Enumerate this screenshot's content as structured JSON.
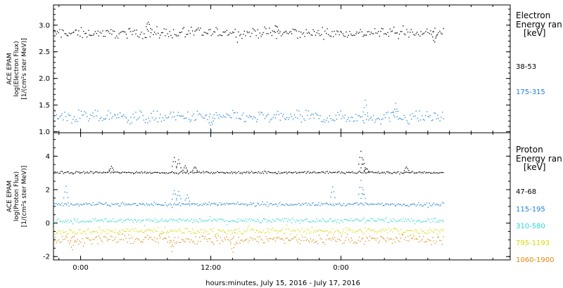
{
  "chart_data": [
    {
      "type": "scatter",
      "panel": "electron",
      "ylabel_lines": [
        "ACE EPAM",
        "log(Electron Flux)",
        "[1/(cm²s ster MeV)]"
      ],
      "yticks": [
        "1.0",
        "1.5",
        "2.0",
        "2.5",
        "3.0"
      ],
      "ylim": [
        0.98,
        3.38
      ],
      "legend_title": [
        "Electron",
        "Energy ran",
        "[keV]"
      ],
      "series": [
        {
          "name": "38-53",
          "color": "#000000",
          "mean": 2.86,
          "spread": 0.07,
          "spikes": [
            [
              6.2,
              3.1
            ],
            [
              18.0,
              3.02
            ],
            [
              32.6,
              2.7
            ]
          ]
        },
        {
          "name": "175-315",
          "color": "#1f7fd4",
          "mean": 1.28,
          "spread": 0.09,
          "spikes": [
            [
              26.2,
              1.58
            ],
            [
              29.0,
              1.52
            ],
            [
              12.0,
              1.06
            ]
          ]
        }
      ]
    },
    {
      "type": "scatter",
      "panel": "proton",
      "ylabel_lines": [
        "ACE EPAM",
        "log(Proton Flux)",
        "[1/(cm²s ster MeV)]"
      ],
      "yticks": [
        "-2",
        "0",
        "2",
        "4"
      ],
      "ylim": [
        -2.2,
        5.4
      ],
      "legend_title": [
        "Proton",
        "Energy ran",
        "[keV]"
      ],
      "series": [
        {
          "name": "47-68",
          "color": "#000000",
          "mean": 3.05,
          "spread": 0.05,
          "spikes": [
            [
              8.6,
              3.95
            ],
            [
              9.0,
              3.8
            ],
            [
              9.6,
              3.45
            ],
            [
              25.8,
              4.3
            ],
            [
              26.0,
              3.8
            ],
            [
              26.3,
              3.3
            ],
            [
              2.8,
              3.4
            ],
            [
              10.5,
              3.4
            ],
            [
              30.0,
              3.4
            ]
          ]
        },
        {
          "name": "115-195",
          "color": "#1f7fd4",
          "mean": 1.15,
          "spread": 0.08,
          "spikes": [
            [
              8.6,
              2.0
            ],
            [
              9.0,
              1.9
            ],
            [
              9.8,
              1.7
            ],
            [
              25.8,
              2.6
            ],
            [
              26.0,
              2.0
            ],
            [
              23.2,
              2.2
            ],
            [
              -1.4,
              2.2
            ]
          ]
        },
        {
          "name": "310-580",
          "color": "#2ad6d6",
          "mean": 0.18,
          "spread": 0.11,
          "spikes": []
        },
        {
          "name": "795-1193",
          "color": "#d9d900",
          "mean": -0.45,
          "spread": 0.15,
          "spikes": []
        },
        {
          "name": "1060-1900",
          "color": "#e08a10",
          "mean": -0.95,
          "spread": 0.22,
          "spikes": [
            [
              8.4,
              -1.6
            ],
            [
              14.0,
              -1.65
            ],
            [
              -0.8,
              -1.55
            ]
          ]
        }
      ]
    }
  ],
  "x_axis": {
    "xlabel": "hours:minutes, July 15, 2016 - July 17, 2016",
    "unit": "hours from July 15 00:00",
    "xlim": [
      -2.5,
      39.6
    ],
    "data_range": [
      -2.5,
      33.4
    ],
    "ticks": [
      {
        "value": 0,
        "label": "0:00"
      },
      {
        "value": 12,
        "label": "12:00"
      },
      {
        "value": 24,
        "label": "0:00"
      }
    ],
    "minor_tick_step_hours": 2
  }
}
